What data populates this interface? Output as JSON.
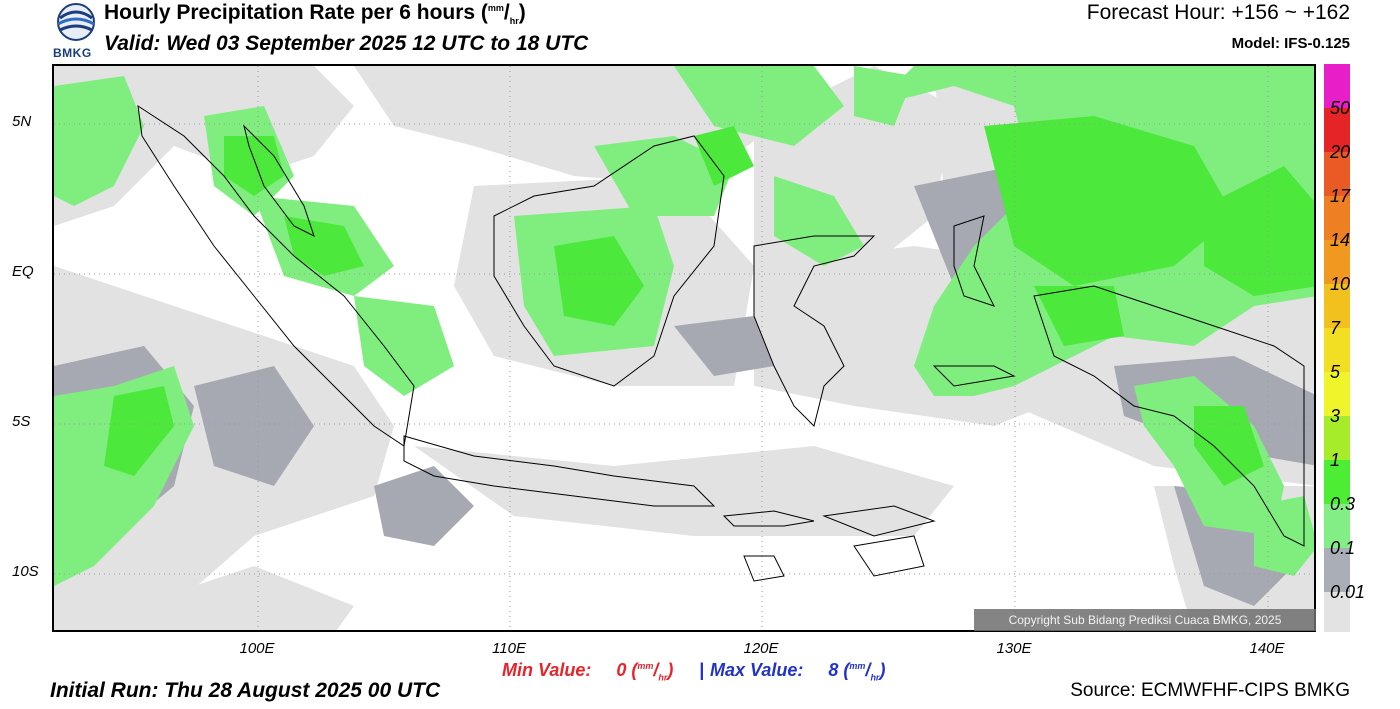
{
  "header": {
    "logo_text": "BMKG",
    "title": "Hourly Precipitation Rate per 6 hours (",
    "title_unit_sup": "mm",
    "title_unit_sub": "hr",
    "title_close": ")",
    "valid": "Valid: Wed 03 September 2025 12 UTC to 18 UTC",
    "forecast_hour": "Forecast Hour: +156 ~ +162",
    "model": "Model: IFS-0.125"
  },
  "map": {
    "lat_labels": [
      "5N",
      "EQ",
      "5S",
      "10S"
    ],
    "lon_labels": [
      "100E",
      "110E",
      "120E",
      "130E",
      "140E"
    ],
    "copyright": "Copyright Sub Bidang Prediksi Cuaca BMKG, 2025",
    "colors": {
      "ocean": "#ffffff",
      "light_rain": "#e2e2e2",
      "moderate": "#a6a9b2",
      "green_light": "#7fee7f",
      "green": "#4de83c",
      "coast": "#000000"
    }
  },
  "legend": {
    "labels": [
      "50",
      "20",
      "17",
      "14",
      "10",
      "7",
      "5",
      "3",
      "1",
      "0.3",
      "0.1",
      "0.01"
    ],
    "colors": [
      "#e81ec8",
      "#e52525",
      "#ea5a24",
      "#ee7f22",
      "#f0981f",
      "#f3c11d",
      "#f2de22",
      "#eef52a",
      "#a7ec2b",
      "#4ded33",
      "#84ee86",
      "#aaaeb6",
      "#e3e3e3"
    ]
  },
  "footer": {
    "min_label": "Min Value:",
    "min_value": "0",
    "max_label": "Max Value:",
    "max_value": "8",
    "unit_sup": "mm",
    "unit_sub": "hr",
    "separator": "|",
    "initial_run": "Initial Run: Thu 28 August 2025 00 UTC",
    "source": "Source: ECMWFHF-CIPS BMKG"
  }
}
